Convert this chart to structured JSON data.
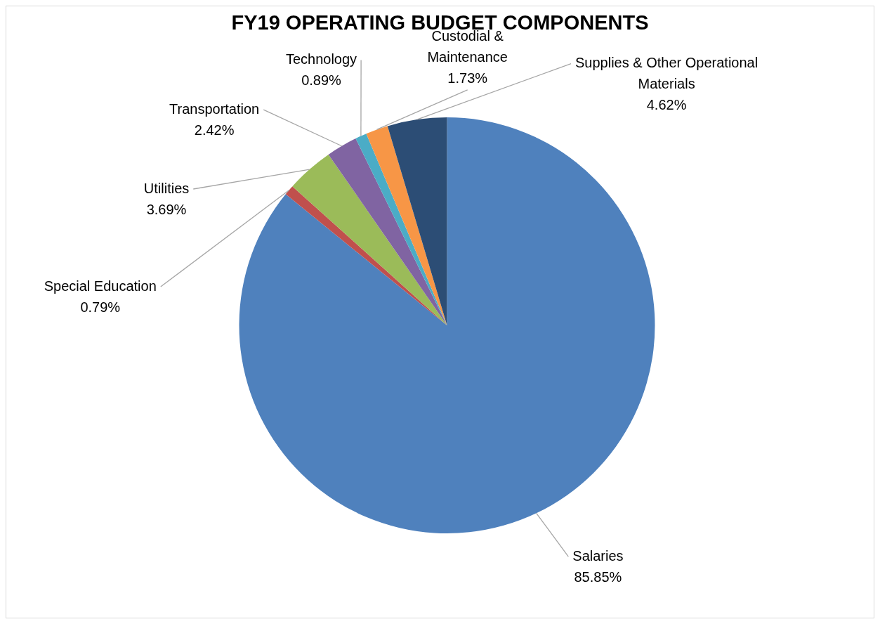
{
  "chart_data": {
    "type": "pie",
    "title": "FY19 OPERATING BUDGET COMPONENTS",
    "categories": [
      "Salaries",
      "Special Education",
      "Utilities",
      "Transportation",
      "Technology",
      "Custodial & Maintenance",
      "Supplies & Other Operational Materials"
    ],
    "values": [
      85.85,
      0.79,
      3.69,
      2.42,
      0.89,
      1.73,
      4.62
    ],
    "colors": [
      "#4f81bd",
      "#c0504d",
      "#9bbb59",
      "#8064a2",
      "#4bacc6",
      "#f79646",
      "#2c4d75"
    ],
    "value_labels": [
      "85.85%",
      "0.79%",
      "3.69%",
      "2.42%",
      "0.89%",
      "1.73%",
      "4.62%"
    ],
    "legend": false
  }
}
